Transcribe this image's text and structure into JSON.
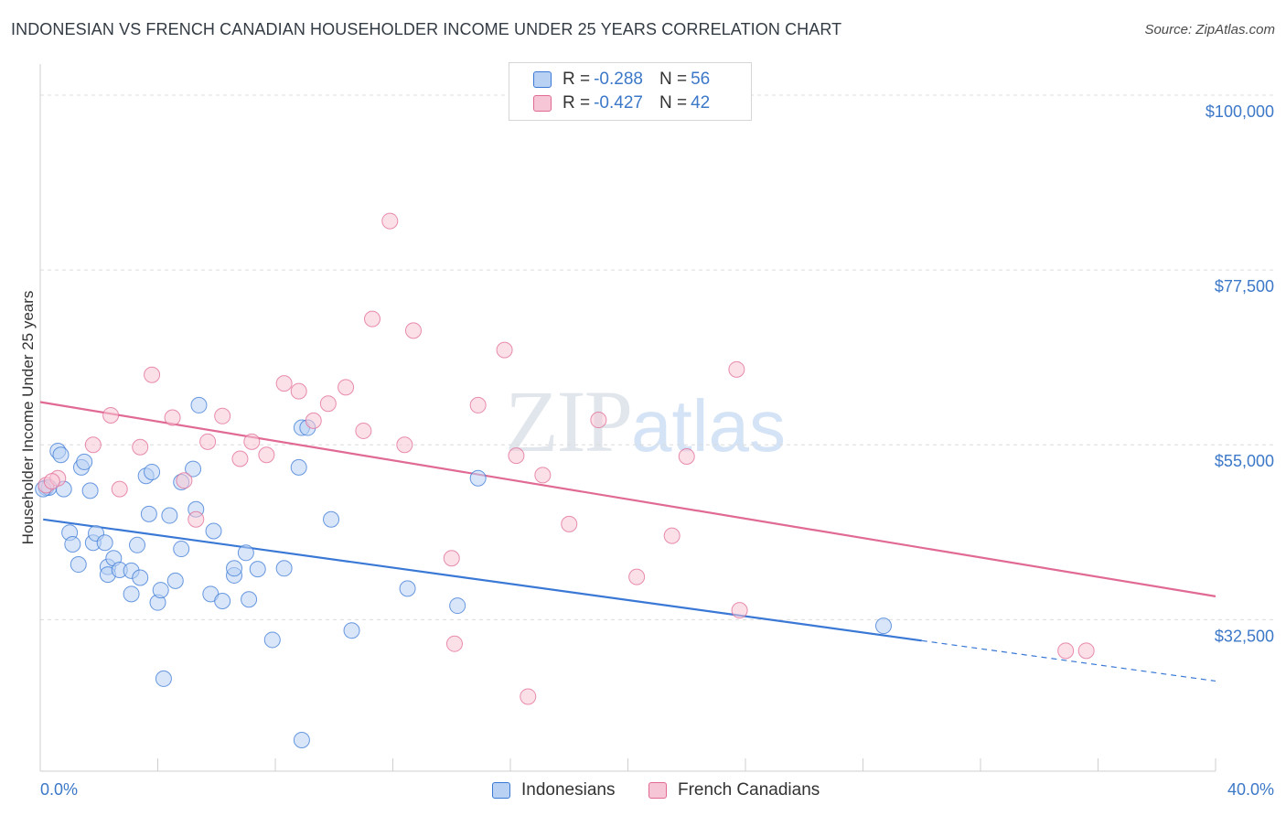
{
  "title": "INDONESIAN VS FRENCH CANADIAN HOUSEHOLDER INCOME UNDER 25 YEARS CORRELATION CHART",
  "source": "Source: ZipAtlas.com",
  "watermark": {
    "zip": "ZIP",
    "atlas": "atlas"
  },
  "legend": {
    "rows": [
      {
        "r_label": "R = ",
        "r_value": "-0.288",
        "n_label": "N = ",
        "n_value": "56"
      },
      {
        "r_label": "R = ",
        "r_value": "-0.427",
        "n_label": "N = ",
        "n_value": "42"
      }
    ]
  },
  "bottom_legend": [
    "Indonesians",
    "French Canadians"
  ],
  "chart_data": {
    "type": "scatter",
    "ylabel": "Householder Income Under 25 years",
    "xlim": [
      0,
      40
    ],
    "ylim": [
      13000,
      104000
    ],
    "x_tick_labels": [
      "0.0%",
      "40.0%"
    ],
    "y_ticks": [
      32500,
      55000,
      77500,
      100000
    ],
    "y_tick_labels": [
      "$32,500",
      "$55,000",
      "$77,500",
      "$100,000"
    ],
    "grid": "horizontal dashed",
    "colors": {
      "Indonesians": "#3a78d6",
      "French Canadians": "#e06a94"
    },
    "series": [
      {
        "name": "Indonesians",
        "color": "#3a78d6",
        "fill": "#b9d2f4",
        "trend": {
          "x_start": 0.1,
          "y_start": 45400,
          "x_end": 30.0,
          "y_end": 29800,
          "dashed_to_x": 40.0,
          "dashed_to_y": 24600
        },
        "points": [
          [
            0.2,
            49500
          ],
          [
            0.3,
            49500
          ],
          [
            0.6,
            54200
          ],
          [
            0.7,
            53700
          ],
          [
            0.8,
            49300
          ],
          [
            1.0,
            43700
          ],
          [
            1.1,
            42200
          ],
          [
            1.3,
            39600
          ],
          [
            1.4,
            52100
          ],
          [
            1.5,
            52800
          ],
          [
            1.7,
            49100
          ],
          [
            1.8,
            42400
          ],
          [
            1.9,
            43600
          ],
          [
            2.2,
            42400
          ],
          [
            2.3,
            39300
          ],
          [
            2.3,
            38300
          ],
          [
            2.5,
            40400
          ],
          [
            2.7,
            38900
          ],
          [
            3.1,
            38800
          ],
          [
            3.1,
            35800
          ],
          [
            3.3,
            42100
          ],
          [
            3.4,
            37900
          ],
          [
            3.6,
            51000
          ],
          [
            3.7,
            46100
          ],
          [
            3.8,
            51500
          ],
          [
            4.0,
            34700
          ],
          [
            4.1,
            36300
          ],
          [
            4.2,
            24900
          ],
          [
            4.4,
            45900
          ],
          [
            4.6,
            37500
          ],
          [
            4.8,
            41600
          ],
          [
            4.8,
            50200
          ],
          [
            5.2,
            51900
          ],
          [
            5.3,
            46700
          ],
          [
            5.4,
            60100
          ],
          [
            5.8,
            35800
          ],
          [
            5.9,
            43900
          ],
          [
            6.2,
            34900
          ],
          [
            6.6,
            38200
          ],
          [
            6.6,
            39100
          ],
          [
            7.0,
            41100
          ],
          [
            7.1,
            35100
          ],
          [
            7.4,
            39000
          ],
          [
            7.9,
            29900
          ],
          [
            8.3,
            39100
          ],
          [
            8.8,
            52100
          ],
          [
            8.9,
            57200
          ],
          [
            9.1,
            57200
          ],
          [
            9.9,
            45400
          ],
          [
            10.6,
            31100
          ],
          [
            12.5,
            36500
          ],
          [
            14.2,
            34300
          ],
          [
            14.9,
            50700
          ],
          [
            28.7,
            31700
          ],
          [
            8.9,
            17000
          ],
          [
            0.1,
            49300
          ]
        ]
      },
      {
        "name": "French Canadians",
        "color": "#e06a94",
        "fill": "#f7c6d6",
        "trend": {
          "x_start": 0.0,
          "y_start": 60500,
          "x_end": 40.0,
          "y_end": 35500
        },
        "points": [
          [
            0.2,
            49800
          ],
          [
            0.6,
            50700
          ],
          [
            1.8,
            55000
          ],
          [
            2.4,
            58800
          ],
          [
            2.7,
            49300
          ],
          [
            3.4,
            54700
          ],
          [
            3.8,
            64000
          ],
          [
            4.5,
            58500
          ],
          [
            4.9,
            50400
          ],
          [
            5.3,
            45400
          ],
          [
            5.7,
            55400
          ],
          [
            6.2,
            58700
          ],
          [
            6.8,
            53200
          ],
          [
            7.2,
            55400
          ],
          [
            7.7,
            53700
          ],
          [
            8.3,
            62900
          ],
          [
            8.8,
            61900
          ],
          [
            9.3,
            58100
          ],
          [
            9.8,
            60300
          ],
          [
            10.4,
            62400
          ],
          [
            11.0,
            56800
          ],
          [
            11.3,
            71200
          ],
          [
            11.9,
            83800
          ],
          [
            12.4,
            55000
          ],
          [
            12.7,
            69700
          ],
          [
            14.0,
            40400
          ],
          [
            14.1,
            29400
          ],
          [
            14.9,
            60100
          ],
          [
            15.8,
            67200
          ],
          [
            16.2,
            53600
          ],
          [
            16.6,
            22600
          ],
          [
            17.1,
            51100
          ],
          [
            18.0,
            44800
          ],
          [
            19.0,
            58200
          ],
          [
            20.3,
            38000
          ],
          [
            21.5,
            43300
          ],
          [
            22.0,
            53500
          ],
          [
            23.7,
            64700
          ],
          [
            23.8,
            33700
          ],
          [
            34.9,
            28500
          ],
          [
            35.6,
            28500
          ],
          [
            0.4,
            50300
          ]
        ]
      }
    ]
  }
}
